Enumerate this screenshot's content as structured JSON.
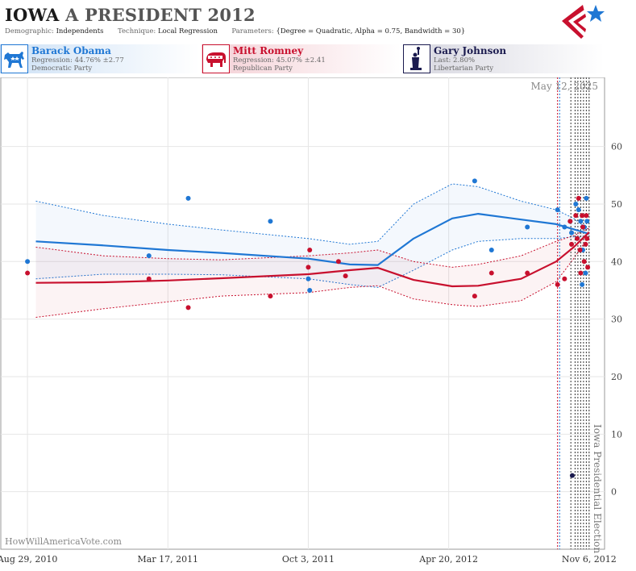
{
  "header": {
    "state": "IOWA",
    "race": "A PRESIDENT 2012",
    "demographic_label": "Demographic:",
    "demographic_value": "Independents",
    "technique_label": "Technique:",
    "technique_value": "Local Regression",
    "parameters_label": "Parameters:",
    "parameters_value": "{Degree = Quadratic, Alpha = 0.75, Bandwidth = 30}"
  },
  "candidates": [
    {
      "name": "Barack Obama",
      "stat": "Regression: 44.76% ±2.77",
      "party": "Democratic Party",
      "color": "#1f77d4",
      "icon": "donkey-icon"
    },
    {
      "name": "Mitt Romney",
      "stat": "Regression: 45.07% ±2.41",
      "party": "Republican Party",
      "color": "#c8102e",
      "icon": "elephant-icon"
    },
    {
      "name": "Gary Johnson",
      "stat": "Last: 2.80%",
      "party": "Libertarian Party",
      "color": "#1a1a4e",
      "icon": "statue-of-liberty-icon"
    }
  ],
  "watermark": "HowWillAmericaVote.com",
  "date_annotation": "May 12, 2025",
  "election_label": "Iowa Presidential Election",
  "chart_data": {
    "type": "scatter",
    "x_tick_labels": [
      "Aug 29, 2010",
      "Mar 17, 2011",
      "Oct 3, 2011",
      "Apr 20, 2012",
      "Nov 6, 2012"
    ],
    "x_ticks": [
      "2010-08-29",
      "2011-03-17",
      "2011-10-03",
      "2012-04-20",
      "2012-11-06"
    ],
    "xlim": [
      "2010-07-22",
      "2012-11-28"
    ],
    "ylim": [
      -10,
      72
    ],
    "y_ticks": [
      0,
      10,
      20,
      30,
      40,
      50,
      60
    ],
    "grid": true,
    "election_date": "2012-11-06",
    "event_lines": [
      {
        "date": "2012-09-22",
        "color": "#c8102e"
      },
      {
        "date": "2012-09-25",
        "color": "#1f77d4"
      },
      {
        "date": "2012-10-11",
        "color": "#333333"
      },
      {
        "date": "2012-10-17",
        "color": "#333333"
      },
      {
        "date": "2012-10-21",
        "color": "#333333"
      },
      {
        "date": "2012-10-25",
        "color": "#333333"
      },
      {
        "date": "2012-10-29",
        "color": "#333333"
      },
      {
        "date": "2012-11-02",
        "color": "#333333"
      },
      {
        "date": "2012-11-06",
        "color": "#333333"
      }
    ],
    "series": [
      {
        "name": "Barack Obama",
        "color": "#1f77d4",
        "points": [
          [
            "2010-08-29",
            40
          ],
          [
            "2011-02-18",
            41
          ],
          [
            "2011-04-15",
            51
          ],
          [
            "2011-08-10",
            47
          ],
          [
            "2011-10-03",
            37
          ],
          [
            "2011-10-05",
            35
          ],
          [
            "2012-05-27",
            54
          ],
          [
            "2012-06-20",
            42
          ],
          [
            "2012-08-10",
            46
          ],
          [
            "2012-09-22",
            49
          ],
          [
            "2012-10-02",
            46
          ],
          [
            "2012-10-10",
            47
          ],
          [
            "2012-10-12",
            45
          ],
          [
            "2012-10-18",
            50
          ],
          [
            "2012-10-20",
            44
          ],
          [
            "2012-10-22",
            49
          ],
          [
            "2012-10-25",
            47
          ],
          [
            "2012-10-27",
            36
          ],
          [
            "2012-10-28",
            42
          ],
          [
            "2012-10-30",
            46
          ],
          [
            "2012-11-01",
            38
          ],
          [
            "2012-11-02",
            51
          ],
          [
            "2012-11-03",
            47
          ]
        ],
        "trend": [
          [
            "2010-09-10",
            43.5
          ],
          [
            "2010-12-15",
            42.8
          ],
          [
            "2011-03-17",
            42.0
          ],
          [
            "2011-06-01",
            41.5
          ],
          [
            "2011-10-03",
            40.5
          ],
          [
            "2011-12-01",
            39.5
          ],
          [
            "2012-01-10",
            39.4
          ],
          [
            "2012-03-01",
            44.0
          ],
          [
            "2012-04-25",
            47.5
          ],
          [
            "2012-06-01",
            48.3
          ],
          [
            "2012-08-01",
            47.3
          ],
          [
            "2012-09-20",
            46.5
          ],
          [
            "2012-10-15",
            45.6
          ],
          [
            "2012-11-06",
            44.8
          ]
        ],
        "upper": [
          [
            "2010-09-10",
            50.5
          ],
          [
            "2010-12-15",
            48.0
          ],
          [
            "2011-03-17",
            46.5
          ],
          [
            "2011-06-01",
            45.5
          ],
          [
            "2011-10-03",
            44.0
          ],
          [
            "2011-12-01",
            43.0
          ],
          [
            "2012-01-10",
            43.5
          ],
          [
            "2012-03-01",
            50.0
          ],
          [
            "2012-04-25",
            53.5
          ],
          [
            "2012-06-01",
            53.0
          ],
          [
            "2012-08-01",
            50.5
          ],
          [
            "2012-09-20",
            49.0
          ],
          [
            "2012-10-15",
            47.5
          ],
          [
            "2012-11-06",
            45.5
          ]
        ],
        "lower": [
          [
            "2010-09-10",
            37.0
          ],
          [
            "2010-12-15",
            37.8
          ],
          [
            "2011-03-17",
            37.8
          ],
          [
            "2011-06-01",
            37.7
          ],
          [
            "2011-10-03",
            37.0
          ],
          [
            "2011-12-01",
            36.0
          ],
          [
            "2012-01-10",
            35.5
          ],
          [
            "2012-03-01",
            38.5
          ],
          [
            "2012-04-25",
            42.0
          ],
          [
            "2012-06-01",
            43.5
          ],
          [
            "2012-08-01",
            44.0
          ],
          [
            "2012-09-20",
            44.0
          ],
          [
            "2012-10-15",
            44.3
          ],
          [
            "2012-11-06",
            44.2
          ]
        ]
      },
      {
        "name": "Mitt Romney",
        "color": "#c8102e",
        "points": [
          [
            "2010-08-29",
            38
          ],
          [
            "2011-02-18",
            37
          ],
          [
            "2011-04-15",
            32
          ],
          [
            "2011-08-10",
            34
          ],
          [
            "2011-10-03",
            39
          ],
          [
            "2011-10-05",
            42
          ],
          [
            "2011-11-15",
            40
          ],
          [
            "2011-11-25",
            37.5
          ],
          [
            "2012-05-27",
            34
          ],
          [
            "2012-06-20",
            38
          ],
          [
            "2012-08-10",
            38
          ],
          [
            "2012-09-22",
            36
          ],
          [
            "2012-10-02",
            37
          ],
          [
            "2012-10-10",
            47
          ],
          [
            "2012-10-12",
            43
          ],
          [
            "2012-10-18",
            48
          ],
          [
            "2012-10-20",
            44
          ],
          [
            "2012-10-22",
            51
          ],
          [
            "2012-10-24",
            42
          ],
          [
            "2012-10-25",
            38
          ],
          [
            "2012-10-27",
            48
          ],
          [
            "2012-10-28",
            46
          ],
          [
            "2012-10-30",
            40
          ],
          [
            "2012-11-01",
            43
          ],
          [
            "2012-11-02",
            48
          ],
          [
            "2012-11-03",
            44
          ],
          [
            "2012-11-04",
            39
          ]
        ],
        "trend": [
          [
            "2010-09-10",
            36.3
          ],
          [
            "2010-12-15",
            36.4
          ],
          [
            "2011-03-17",
            36.7
          ],
          [
            "2011-06-01",
            37.1
          ],
          [
            "2011-10-03",
            37.8
          ],
          [
            "2011-12-01",
            38.5
          ],
          [
            "2012-01-10",
            38.9
          ],
          [
            "2012-03-01",
            36.8
          ],
          [
            "2012-04-25",
            35.7
          ],
          [
            "2012-06-01",
            35.8
          ],
          [
            "2012-08-01",
            37.0
          ],
          [
            "2012-09-20",
            40.0
          ],
          [
            "2012-10-15",
            42.5
          ],
          [
            "2012-11-06",
            45.1
          ]
        ],
        "upper": [
          [
            "2010-09-10",
            42.5
          ],
          [
            "2010-12-15",
            41.0
          ],
          [
            "2011-03-17",
            40.5
          ],
          [
            "2011-06-01",
            40.3
          ],
          [
            "2011-10-03",
            41.0
          ],
          [
            "2011-12-01",
            41.5
          ],
          [
            "2012-01-10",
            42.0
          ],
          [
            "2012-03-01",
            40.0
          ],
          [
            "2012-04-25",
            39.0
          ],
          [
            "2012-06-01",
            39.5
          ],
          [
            "2012-08-01",
            41.0
          ],
          [
            "2012-09-20",
            43.5
          ],
          [
            "2012-10-15",
            44.5
          ],
          [
            "2012-11-06",
            45.8
          ]
        ],
        "lower": [
          [
            "2010-09-10",
            30.3
          ],
          [
            "2010-12-15",
            31.8
          ],
          [
            "2011-03-17",
            33.0
          ],
          [
            "2011-06-01",
            34.0
          ],
          [
            "2011-10-03",
            34.6
          ],
          [
            "2011-12-01",
            35.5
          ],
          [
            "2012-01-10",
            35.8
          ],
          [
            "2012-03-01",
            33.5
          ],
          [
            "2012-04-25",
            32.5
          ],
          [
            "2012-06-01",
            32.2
          ],
          [
            "2012-08-01",
            33.2
          ],
          [
            "2012-09-20",
            36.5
          ],
          [
            "2012-10-15",
            40.5
          ],
          [
            "2012-11-06",
            44.4
          ]
        ]
      },
      {
        "name": "Gary Johnson",
        "color": "#1a1a4e",
        "points": [
          [
            "2012-10-13",
            2.8
          ]
        ],
        "trend": [],
        "upper": [],
        "lower": []
      }
    ]
  }
}
